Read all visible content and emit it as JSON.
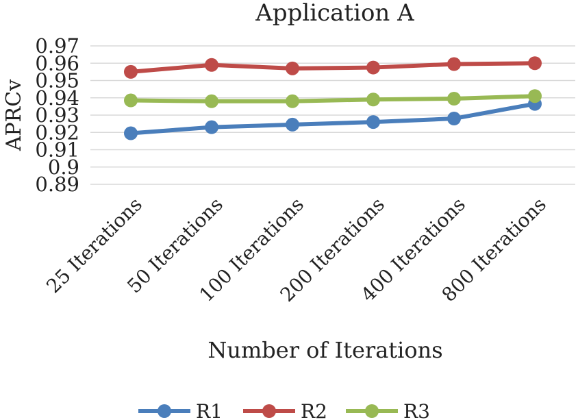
{
  "chart_data": {
    "type": "line",
    "title": "Application A",
    "xlabel": "Number of Iterations",
    "ylabel": "APRCv",
    "categories": [
      "25  Iterations",
      "50  Iterations",
      "100 Iterations",
      "200 Iterations",
      "400 Iterations",
      "800 Iterations"
    ],
    "y_ticks": [
      "0.97",
      "0.96",
      "0.95",
      "0.94",
      "0.93",
      "0.92",
      "0.91",
      "0.9",
      "0.89"
    ],
    "ylim": [
      0.89,
      0.97
    ],
    "grid": true,
    "legend_position": "bottom",
    "series": [
      {
        "name": "R1",
        "color": "#4a7ebb",
        "values": [
          0.9195,
          0.923,
          0.9245,
          0.926,
          0.928,
          0.9365
        ]
      },
      {
        "name": "R2",
        "color": "#be4b48",
        "values": [
          0.955,
          0.959,
          0.957,
          0.9575,
          0.9595,
          0.96
        ]
      },
      {
        "name": "R3",
        "color": "#98b954",
        "values": [
          0.9385,
          0.938,
          0.938,
          0.939,
          0.9395,
          0.941
        ]
      }
    ]
  }
}
